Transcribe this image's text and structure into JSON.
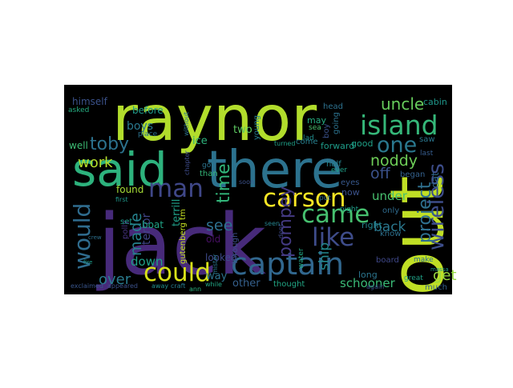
{
  "wordcloud": {
    "words": [
      {
        "text": "raynor",
        "color": "#b2dd2c"
      },
      {
        "text": "jack",
        "color": "#472a7a"
      },
      {
        "text": "out",
        "color": "#c0df25"
      },
      {
        "text": "said",
        "color": "#2db27d"
      },
      {
        "text": "there",
        "color": "#2c728e"
      },
      {
        "text": "island",
        "color": "#35b779"
      },
      {
        "text": "captain",
        "color": "#31678e"
      },
      {
        "text": "could",
        "color": "#d8e219"
      },
      {
        "text": "carson",
        "color": "#fde725"
      },
      {
        "text": "came",
        "color": "#46c06f"
      },
      {
        "text": "like",
        "color": "#3e4c8a"
      },
      {
        "text": "wireless",
        "color": "#3d4d8a"
      },
      {
        "text": "would",
        "color": "#2f6c8e"
      },
      {
        "text": "man",
        "color": "#3f4788"
      },
      {
        "text": "one",
        "color": "#2a788e"
      },
      {
        "text": "uncle",
        "color": "#67cc5c"
      },
      {
        "text": "noddy",
        "color": "#6ece58"
      },
      {
        "text": "pompey",
        "color": "#443a83"
      },
      {
        "text": "project",
        "color": "#2e6f8e"
      },
      {
        "text": "time",
        "color": "#32b67a"
      },
      {
        "text": "toby",
        "color": "#2c728e"
      },
      {
        "text": "work",
        "color": "#b5de2b"
      },
      {
        "text": "made",
        "color": "#26828e"
      },
      {
        "text": "over",
        "color": "#297b8e"
      },
      {
        "text": "off",
        "color": "#3b528b"
      },
      {
        "text": "get",
        "color": "#95d840"
      },
      {
        "text": "back",
        "color": "#2a778e"
      },
      {
        "text": "see",
        "color": "#2d708e"
      },
      {
        "text": "ship",
        "color": "#23888e"
      },
      {
        "text": "under",
        "color": "#48c16e"
      },
      {
        "text": "down",
        "color": "#1fa088"
      },
      {
        "text": "schooner",
        "color": "#3aba76"
      },
      {
        "text": "other",
        "color": "#35608d"
      },
      {
        "text": "way",
        "color": "#2c738e"
      },
      {
        "text": "boys",
        "color": "#2a788e"
      },
      {
        "text": "himself",
        "color": "#3b528b"
      },
      {
        "text": "before",
        "color": "#1f998a"
      },
      {
        "text": "ice",
        "color": "#2eb37c"
      },
      {
        "text": "terror",
        "color": "#414487"
      },
      {
        "text": "terrill",
        "color": "#1f9f88"
      },
      {
        "text": "forward",
        "color": "#1e9c89"
      },
      {
        "text": "well",
        "color": "#3dbc74"
      },
      {
        "text": "boat",
        "color": "#20a486"
      },
      {
        "text": "two",
        "color": "#5ec962"
      },
      {
        "text": "good",
        "color": "#1fa187"
      },
      {
        "text": "found",
        "color": "#a5db36"
      },
      {
        "text": "old",
        "color": "#471063"
      },
      {
        "text": "dat",
        "color": "#31688e"
      },
      {
        "text": "long",
        "color": "#2b758e"
      },
      {
        "text": "right",
        "color": "#24868e"
      },
      {
        "text": "know",
        "color": "#2d708e"
      },
      {
        "text": "gutenberg tm",
        "color": "#c5e021"
      },
      {
        "text": "looked",
        "color": "#3e4989"
      },
      {
        "text": "thought",
        "color": "#22a785"
      },
      {
        "text": "much",
        "color": "#34618d"
      },
      {
        "text": "eyes",
        "color": "#38588c"
      },
      {
        "text": "only",
        "color": "#2f6b8e"
      },
      {
        "text": "may",
        "color": "#27ad81"
      },
      {
        "text": "now",
        "color": "#3b528b"
      },
      {
        "text": "head",
        "color": "#2d718e"
      },
      {
        "text": "cabin",
        "color": "#1f978b"
      },
      {
        "text": "saw",
        "color": "#2a768e"
      },
      {
        "text": "last",
        "color": "#365c8d"
      },
      {
        "text": "half",
        "color": "#26828e"
      },
      {
        "text": "began",
        "color": "#34618d"
      },
      {
        "text": "board",
        "color": "#3f4889"
      },
      {
        "text": "make",
        "color": "#2e6e8e"
      },
      {
        "text": "ever",
        "color": "#1fa088"
      },
      {
        "text": "night",
        "color": "#1f9e89"
      },
      {
        "text": "polly",
        "color": "#46327e"
      },
      {
        "text": "boy",
        "color": "#3b528b"
      },
      {
        "text": "going",
        "color": "#2c728e"
      },
      {
        "text": "young",
        "color": "#287d8e"
      },
      {
        "text": "come",
        "color": "#277f8e"
      },
      {
        "text": "set",
        "color": "#1f9a8a"
      },
      {
        "text": "asked",
        "color": "#26ad81"
      },
      {
        "text": "sea",
        "color": "#4ac16d"
      },
      {
        "text": "lad",
        "color": "#228d8d"
      },
      {
        "text": "put",
        "color": "#2e6e8e"
      },
      {
        "text": "great",
        "color": "#1fa287"
      },
      {
        "text": "place",
        "color": "#2c718e"
      },
      {
        "text": "exclaimed",
        "color": "#39558c"
      },
      {
        "text": "appeared",
        "color": "#3b518b"
      },
      {
        "text": "away",
        "color": "#21908d"
      },
      {
        "text": "craft",
        "color": "#287c8e"
      },
      {
        "text": "ann",
        "color": "#2db27d"
      },
      {
        "text": "again",
        "color": "#3a548c"
      },
      {
        "text": "than",
        "color": "#35b779"
      },
      {
        "text": "turned",
        "color": "#1fa188"
      },
      {
        "text": "through",
        "color": "#3c4f8a"
      },
      {
        "text": "got",
        "color": "#2b748e"
      },
      {
        "text": "water",
        "color": "#22a884"
      },
      {
        "text": "mister",
        "color": "#2a788e"
      },
      {
        "text": "dont",
        "color": "#3e4a89"
      },
      {
        "text": "first",
        "color": "#1f978b"
      },
      {
        "text": "chapter",
        "color": "#3e4c8a"
      },
      {
        "text": "while",
        "color": "#22a785"
      },
      {
        "text": "without",
        "color": "#2c738e"
      },
      {
        "text": "soon",
        "color": "#3b528b"
      },
      {
        "text": "seen",
        "color": "#25848e"
      },
      {
        "text": "crew",
        "color": "#2d708e"
      },
      {
        "text": "fire",
        "color": "#1e9b8a"
      },
      {
        "text": "massa",
        "color": "#1f9a8a"
      }
    ]
  }
}
